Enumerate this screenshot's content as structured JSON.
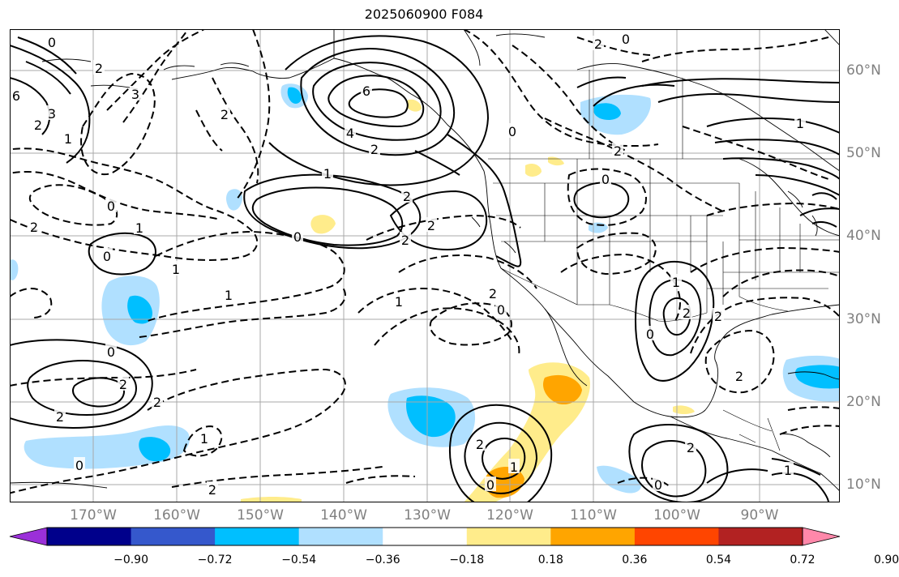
{
  "title": "2025060900 F084",
  "lon_labels": [
    "170°W",
    "160°W",
    "150°W",
    "140°W",
    "130°W",
    "120°W",
    "110°W",
    "100°W",
    "90°W"
  ],
  "lat_labels": [
    "60°N",
    "50°N",
    "40°N",
    "30°N",
    "20°N",
    "10°N"
  ],
  "colorbar": {
    "colors": [
      "#9b30d9",
      "#00008b",
      "#3558cc",
      "#00bfff",
      "#b0e0ff",
      "#ffffff",
      "#ffec8b",
      "#ffa500",
      "#ff4500",
      "#b22222",
      "#ff88aa"
    ],
    "labels": [
      "−0.90",
      "−0.72",
      "−0.54",
      "−0.36",
      "−0.18",
      "0.18",
      "0.36",
      "0.54",
      "0.72",
      "0.90"
    ]
  },
  "contour_labels": [
    "0",
    "6",
    "3",
    "1",
    "2",
    "3",
    "2",
    "6",
    "4",
    "2",
    "1",
    "2",
    "0",
    "2",
    "2",
    "0",
    "2",
    "0",
    "0",
    "2",
    "1",
    "0",
    "2",
    "0",
    "1",
    "2",
    "1",
    "0",
    "2",
    "2",
    "2",
    "1",
    "0",
    "2",
    "1",
    "2",
    "0",
    "2",
    "1",
    "0",
    "2",
    "0",
    "1",
    "2",
    "2",
    "2",
    "0",
    "1",
    "1"
  ]
}
